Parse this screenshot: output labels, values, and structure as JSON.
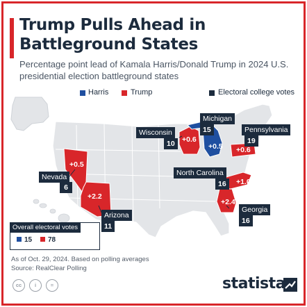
{
  "title": "Trump Pulls Ahead in Battleground States",
  "subtitle": "Percentage point lead of Kamala Harris/Donald Trump in 2024 U.S. presidential election battleground states",
  "legend": {
    "harris": "Harris",
    "trump": "Trump",
    "ecv": "Electoral college votes"
  },
  "colors": {
    "harris": "#1f4fa0",
    "trump": "#d8262a",
    "dark": "#1c2b3d",
    "land": "#e3e5e8",
    "border": "#ffffff"
  },
  "states": [
    {
      "id": "wisconsin",
      "name": "Wisconsin",
      "ev": "10",
      "leader": "trump",
      "lead": "+0.6"
    },
    {
      "id": "michigan",
      "name": "Michigan",
      "ev": "15",
      "leader": "harris",
      "lead": "+0.5"
    },
    {
      "id": "pennsylvania",
      "name": "Pennsylvania",
      "ev": "19",
      "leader": "trump",
      "lead": "+0.6"
    },
    {
      "id": "nevada",
      "name": "Nevada",
      "ev": "6",
      "leader": "trump",
      "lead": "+0.5"
    },
    {
      "id": "arizona",
      "name": "Arizona",
      "ev": "11",
      "leader": "trump",
      "lead": "+2.2"
    },
    {
      "id": "north-carolina",
      "name": "North Carolina",
      "ev": "16",
      "leader": "trump",
      "lead": "+1.0"
    },
    {
      "id": "georgia",
      "name": "Georgia",
      "ev": "16",
      "leader": "trump",
      "lead": "+2.4"
    }
  ],
  "overall": {
    "title": "Overall electoral votes",
    "harris": "15",
    "trump": "78"
  },
  "note": "As of Oct. 29, 2024. Based on polling averages",
  "source": "Source: RealClear Polling",
  "license_icons": [
    "cc-icon",
    "by-icon",
    "nd-icon"
  ],
  "license_labels": [
    "cc",
    "i",
    "="
  ],
  "brand": "statista"
}
